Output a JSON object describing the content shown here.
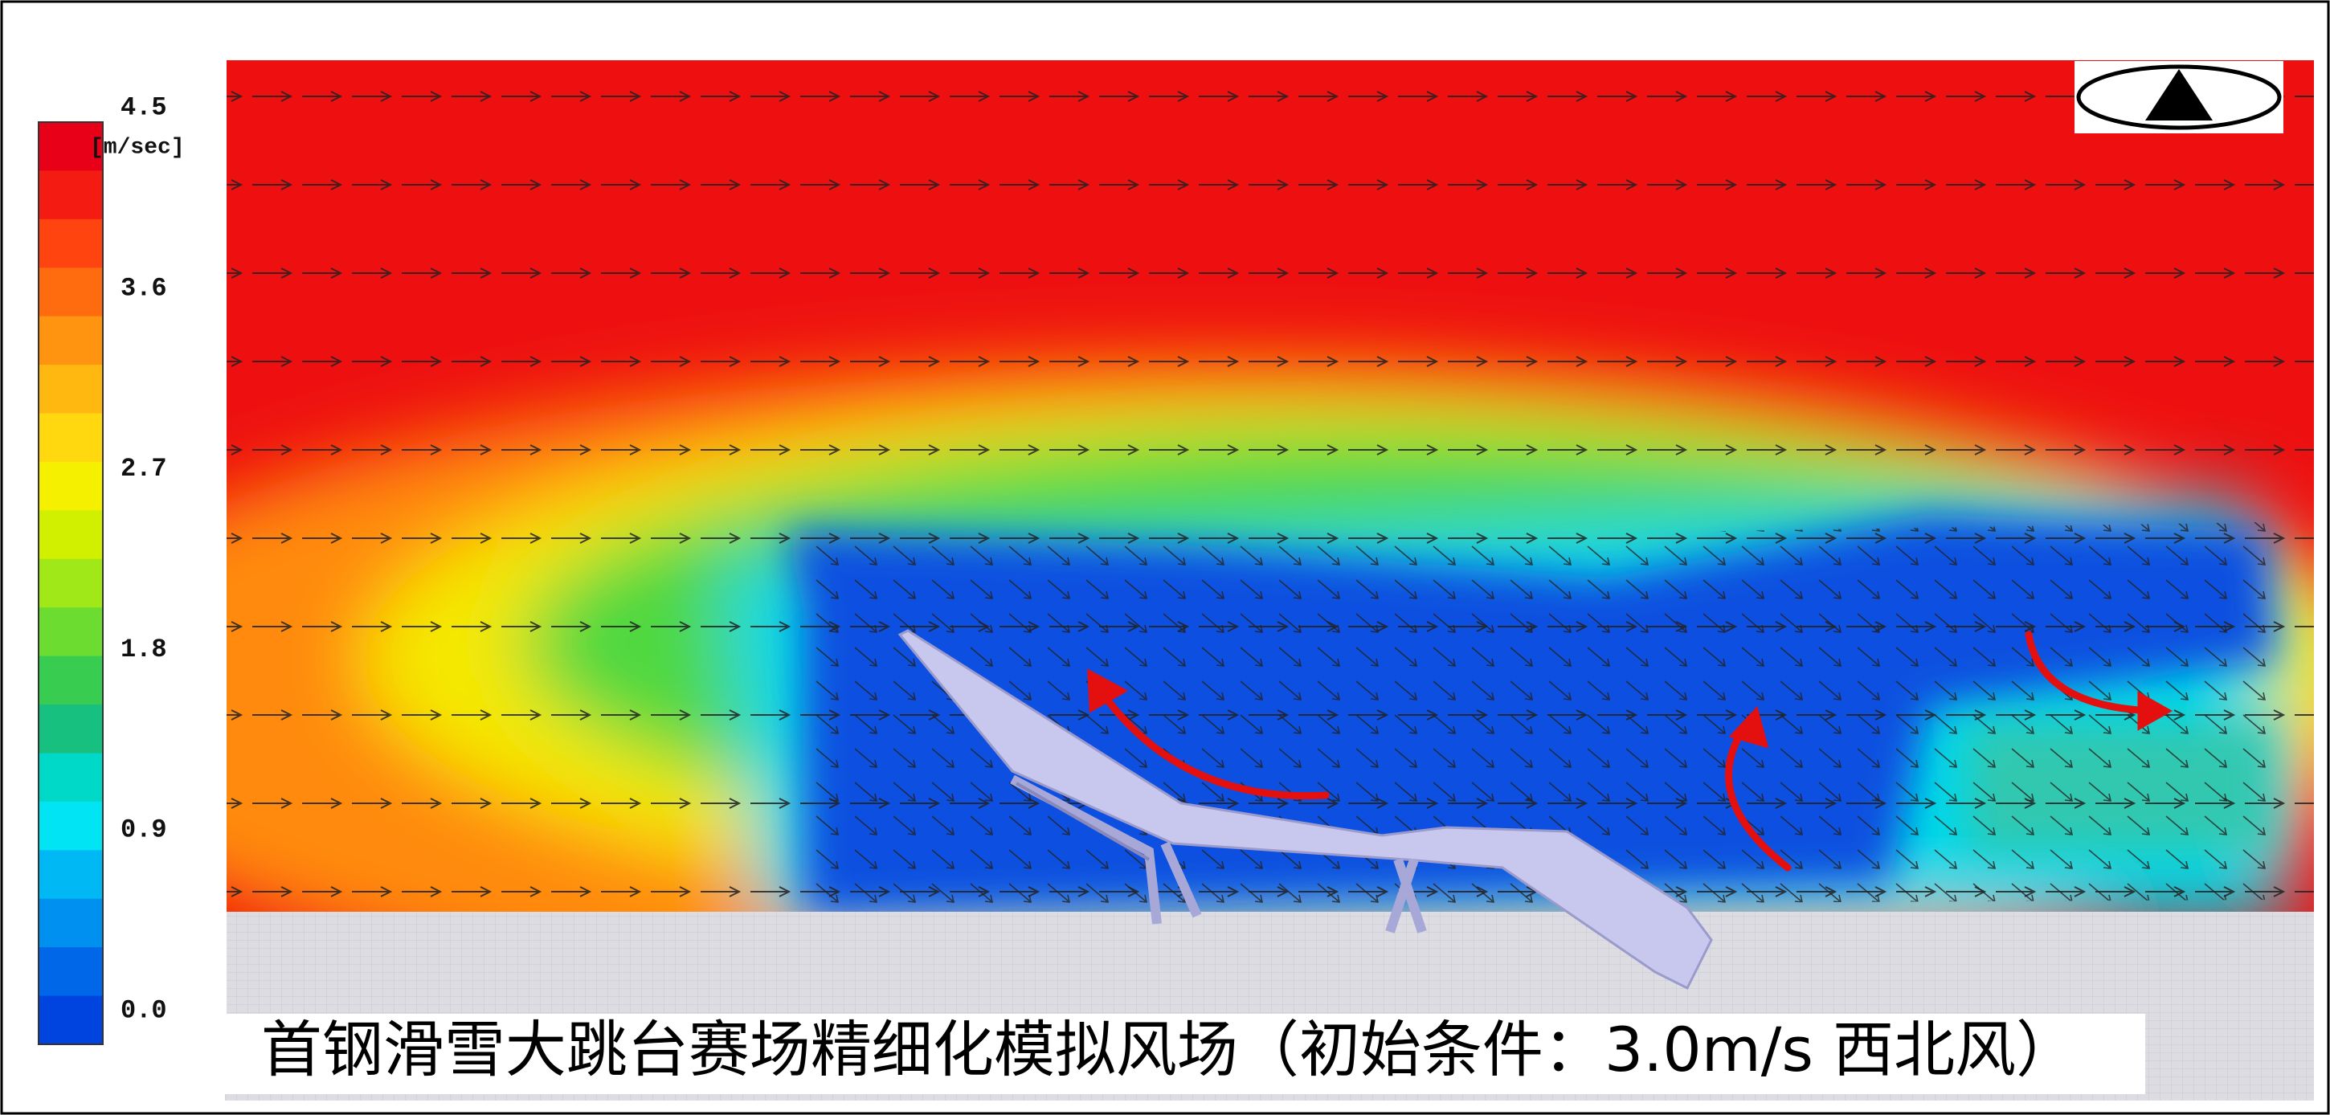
{
  "colorbar": {
    "unit": "[m/sec]",
    "range": [
      0,
      4.5
    ],
    "ticks": [
      4.5,
      3.6,
      2.7,
      1.8,
      0.9,
      {
        "value": 0,
        "label": "0.0"
      }
    ]
  },
  "caption": "首钢滑雪大跳台赛场精细化模拟风场（初始条件：3.0m/s 西北风）"
}
